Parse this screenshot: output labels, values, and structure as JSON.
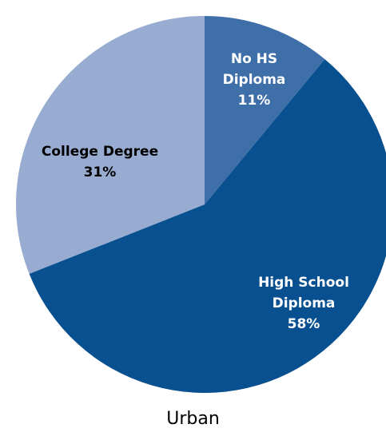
{
  "chart_data": {
    "type": "pie",
    "title": "Urban",
    "categories": [
      "No HS Diploma",
      "High School Diploma",
      "College Degree"
    ],
    "values": [
      11,
      58,
      31
    ],
    "value_labels": [
      "11%",
      "58%",
      "31%"
    ],
    "colors": [
      "#3f6fa8",
      "#08508f",
      "#98acd2"
    ],
    "label_colors": [
      "#ffffff",
      "#ffffff",
      "#000000"
    ]
  }
}
